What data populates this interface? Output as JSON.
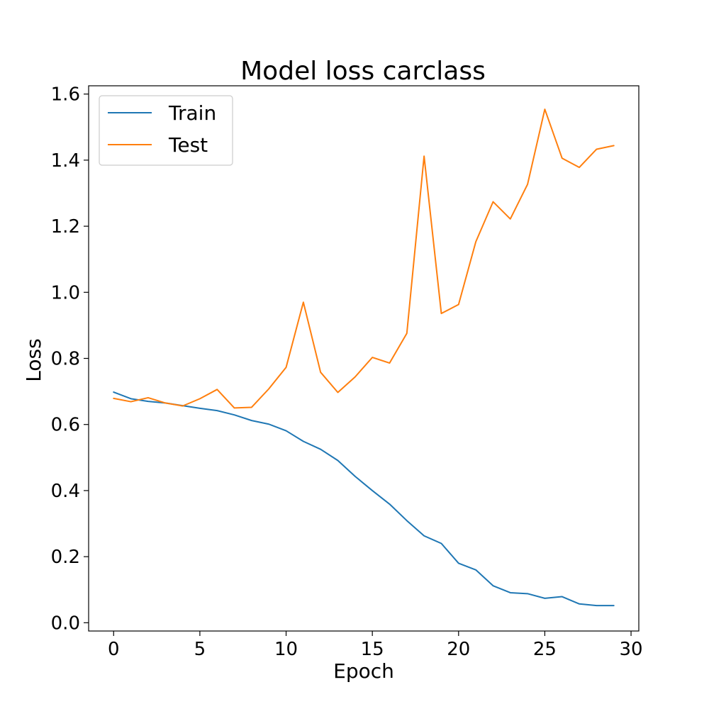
{
  "chart_data": {
    "type": "line",
    "title": "Model loss carclass",
    "xlabel": "Epoch",
    "ylabel": "Loss",
    "xlim": [
      -1.45,
      30.45
    ],
    "ylim": [
      -0.025,
      1.625
    ],
    "xticks": [
      0,
      5,
      10,
      15,
      20,
      25,
      30
    ],
    "xtick_labels": [
      "0",
      "5",
      "10",
      "15",
      "20",
      "25",
      "30"
    ],
    "yticks": [
      0.0,
      0.2,
      0.4,
      0.6,
      0.8,
      1.0,
      1.2,
      1.4,
      1.6
    ],
    "ytick_labels": [
      "0.0",
      "0.2",
      "0.4",
      "0.6",
      "0.8",
      "1.0",
      "1.2",
      "1.4",
      "1.6"
    ],
    "grid": false,
    "legend_position": "top-left",
    "x": [
      0,
      1,
      2,
      3,
      4,
      5,
      6,
      7,
      8,
      9,
      10,
      11,
      12,
      13,
      14,
      15,
      16,
      17,
      18,
      19,
      20,
      21,
      22,
      23,
      24,
      25,
      26,
      27,
      28,
      29
    ],
    "series": [
      {
        "name": "Train",
        "color": "#1f77b4",
        "values": [
          0.698,
          0.678,
          0.67,
          0.665,
          0.657,
          0.649,
          0.642,
          0.629,
          0.612,
          0.601,
          0.581,
          0.549,
          0.525,
          0.491,
          0.443,
          0.4,
          0.359,
          0.309,
          0.263,
          0.24,
          0.18,
          0.16,
          0.112,
          0.091,
          0.088,
          0.074,
          0.079,
          0.057,
          0.052,
          0.052
        ]
      },
      {
        "name": "Test",
        "color": "#ff7f0e",
        "values": [
          0.679,
          0.669,
          0.681,
          0.665,
          0.656,
          0.678,
          0.706,
          0.65,
          0.652,
          0.708,
          0.773,
          0.97,
          0.758,
          0.697,
          0.744,
          0.803,
          0.786,
          0.876,
          1.412,
          0.936,
          0.963,
          1.153,
          1.274,
          1.222,
          1.327,
          1.554,
          1.406,
          1.378,
          1.433,
          1.444
        ]
      }
    ]
  }
}
